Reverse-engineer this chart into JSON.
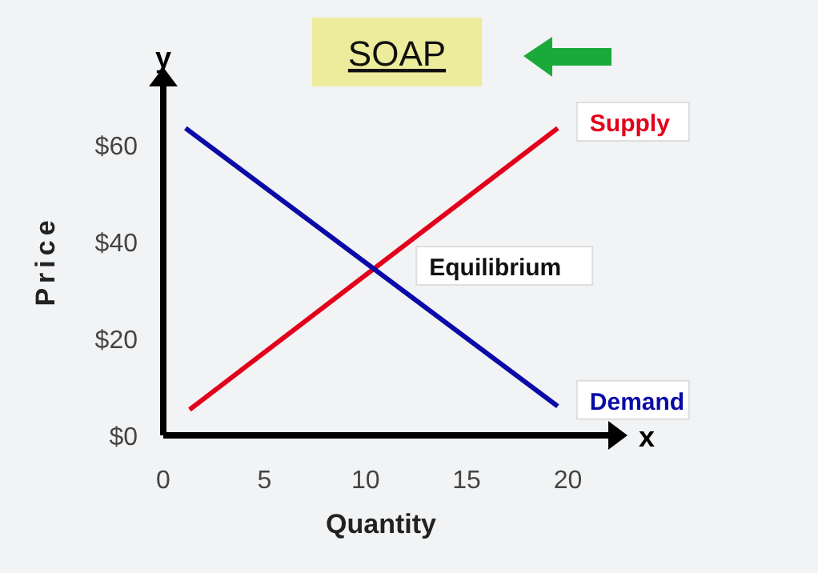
{
  "chart_data": {
    "type": "line",
    "title": "SOAP",
    "xlabel": "Quantity",
    "ylabel": "Price",
    "xlim": [
      0,
      22
    ],
    "ylim": [
      0,
      72
    ],
    "xticks": [
      0,
      5,
      10,
      15,
      20
    ],
    "yticks": [
      {
        "value": 0,
        "label": "$0"
      },
      {
        "value": 20,
        "label": "$20"
      },
      {
        "value": 40,
        "label": "$40"
      },
      {
        "value": 60,
        "label": "$60"
      }
    ],
    "series": [
      {
        "name": "Supply",
        "color": "#e3001b",
        "x": [
          1.3,
          19.5
        ],
        "values": [
          5.3,
          63.4
        ]
      },
      {
        "name": "Demand",
        "color": "#0a0aa8",
        "x": [
          1.1,
          19.5
        ],
        "values": [
          63.4,
          6
        ]
      }
    ],
    "annotations": [
      {
        "text": "Equilibrium",
        "x": 10.3,
        "y": 34
      },
      "y",
      "x"
    ],
    "grid": false,
    "marker": "none",
    "line_style": "solid"
  }
}
